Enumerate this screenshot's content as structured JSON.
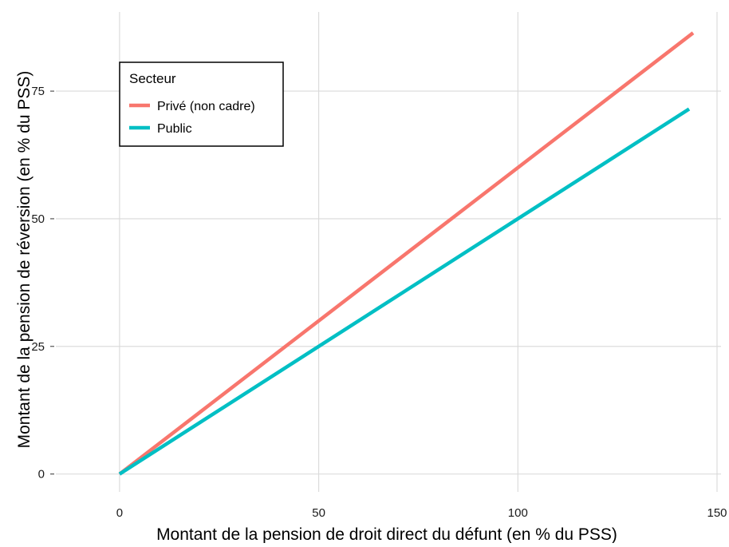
{
  "chart_data": {
    "type": "line",
    "xlabel": "Montant de la pension de droit direct du défunt (en % du PSS)",
    "ylabel": "Montant de la pension de réversion (en % du PSS)",
    "xlim": [
      -16,
      151
    ],
    "ylim": [
      -3.5,
      90.5
    ],
    "x_ticks": [
      0,
      50,
      100,
      150
    ],
    "y_ticks": [
      0,
      25,
      50,
      75
    ],
    "x_tick_labels": [
      "0",
      "50",
      "100",
      "150"
    ],
    "y_tick_labels": [
      "0",
      "25",
      "50",
      "75"
    ],
    "grid": true,
    "legend": {
      "title": "Secteur",
      "position": "top-left"
    },
    "series": [
      {
        "name": "Privé (non cadre)",
        "color": "#F8766D",
        "x": [
          0,
          144
        ],
        "y": [
          0,
          86.4
        ]
      },
      {
        "name": "Public",
        "color": "#00BFC4",
        "x": [
          0,
          143
        ],
        "y": [
          0,
          71.5
        ]
      }
    ]
  }
}
